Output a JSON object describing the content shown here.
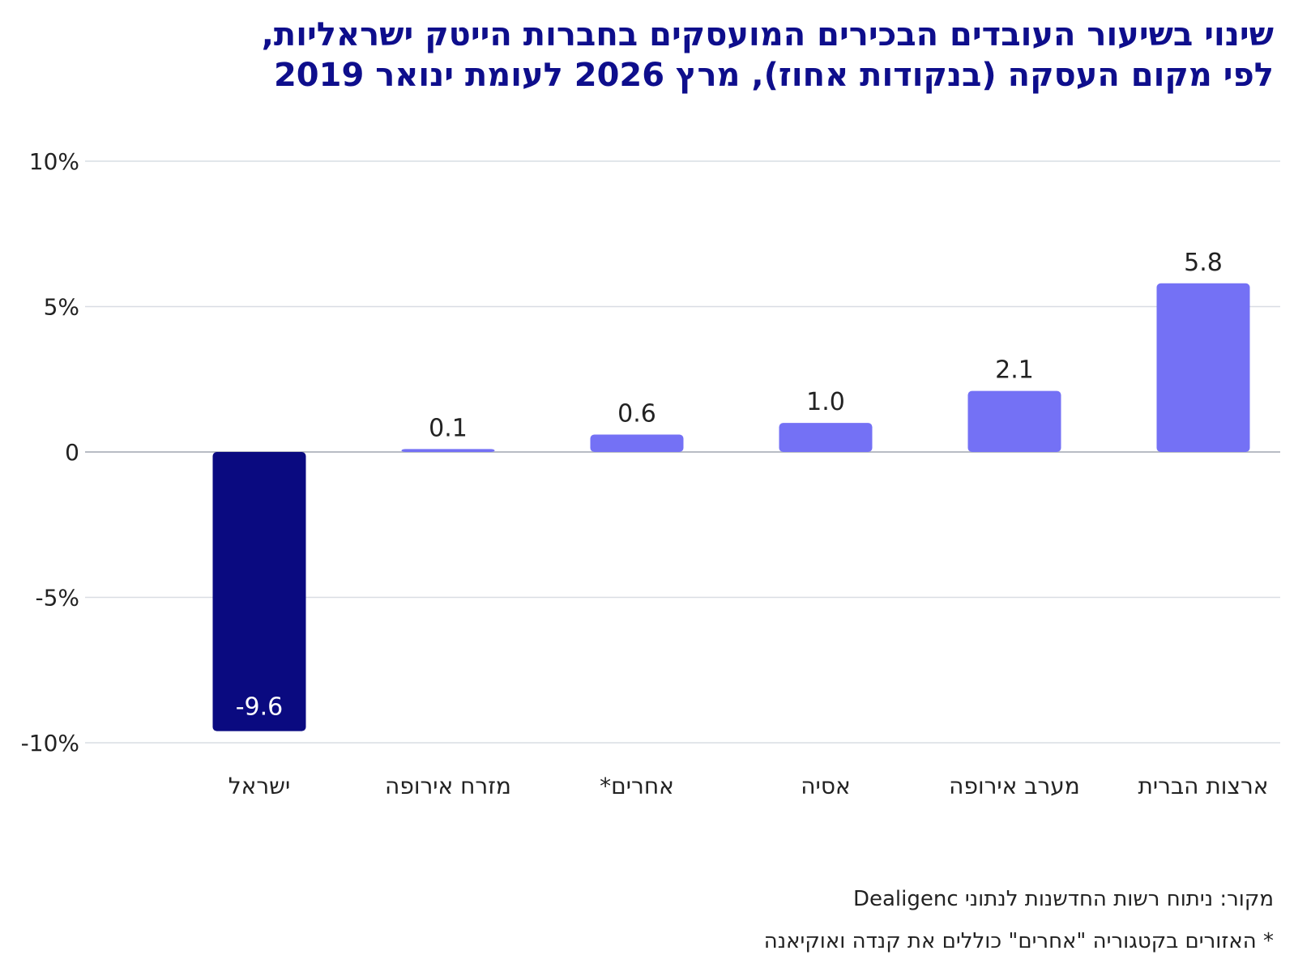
{
  "chart_data": {
    "type": "bar",
    "title_lines": [
      "שינוי בשיעור העובדים הבכירים המועסקים בחברות הייטק ישראליות,",
      "לפי מקום העסקה (בנקודות אחוז), מרץ 2026 לעומת ינואר 2019"
    ],
    "categories": [
      "ישראל",
      "מזרח אירופה",
      "אחרים*",
      "אסיה",
      "מערב אירופה",
      "ארצות הברית"
    ],
    "values": [
      -9.6,
      0.1,
      0.6,
      1.0,
      2.1,
      5.8
    ],
    "data_labels": [
      "-9.6",
      "0.1",
      "0.6",
      "1.0",
      "2.1",
      "5.8"
    ],
    "y_ticks": [
      {
        "value": 10,
        "label": "10%"
      },
      {
        "value": 5,
        "label": "5%"
      },
      {
        "value": 0,
        "label": "0"
      },
      {
        "value": -5,
        "label": "-5%"
      },
      {
        "value": -10,
        "label": "-10%"
      }
    ],
    "ylim": [
      -10,
      10
    ],
    "grid": true,
    "legend": "none",
    "colors": {
      "highlight": "#0a0a80",
      "default": "#7471f5",
      "grid": "#d9dde3",
      "text": "#222222"
    }
  },
  "notes": {
    "source": "מקור: ניתוח רשות החדשנות לנתוני Dealigenc",
    "footnote": "* האזורים בקטגוריה \"אחרים\" כוללים את קנדה ואוקיאנה"
  }
}
